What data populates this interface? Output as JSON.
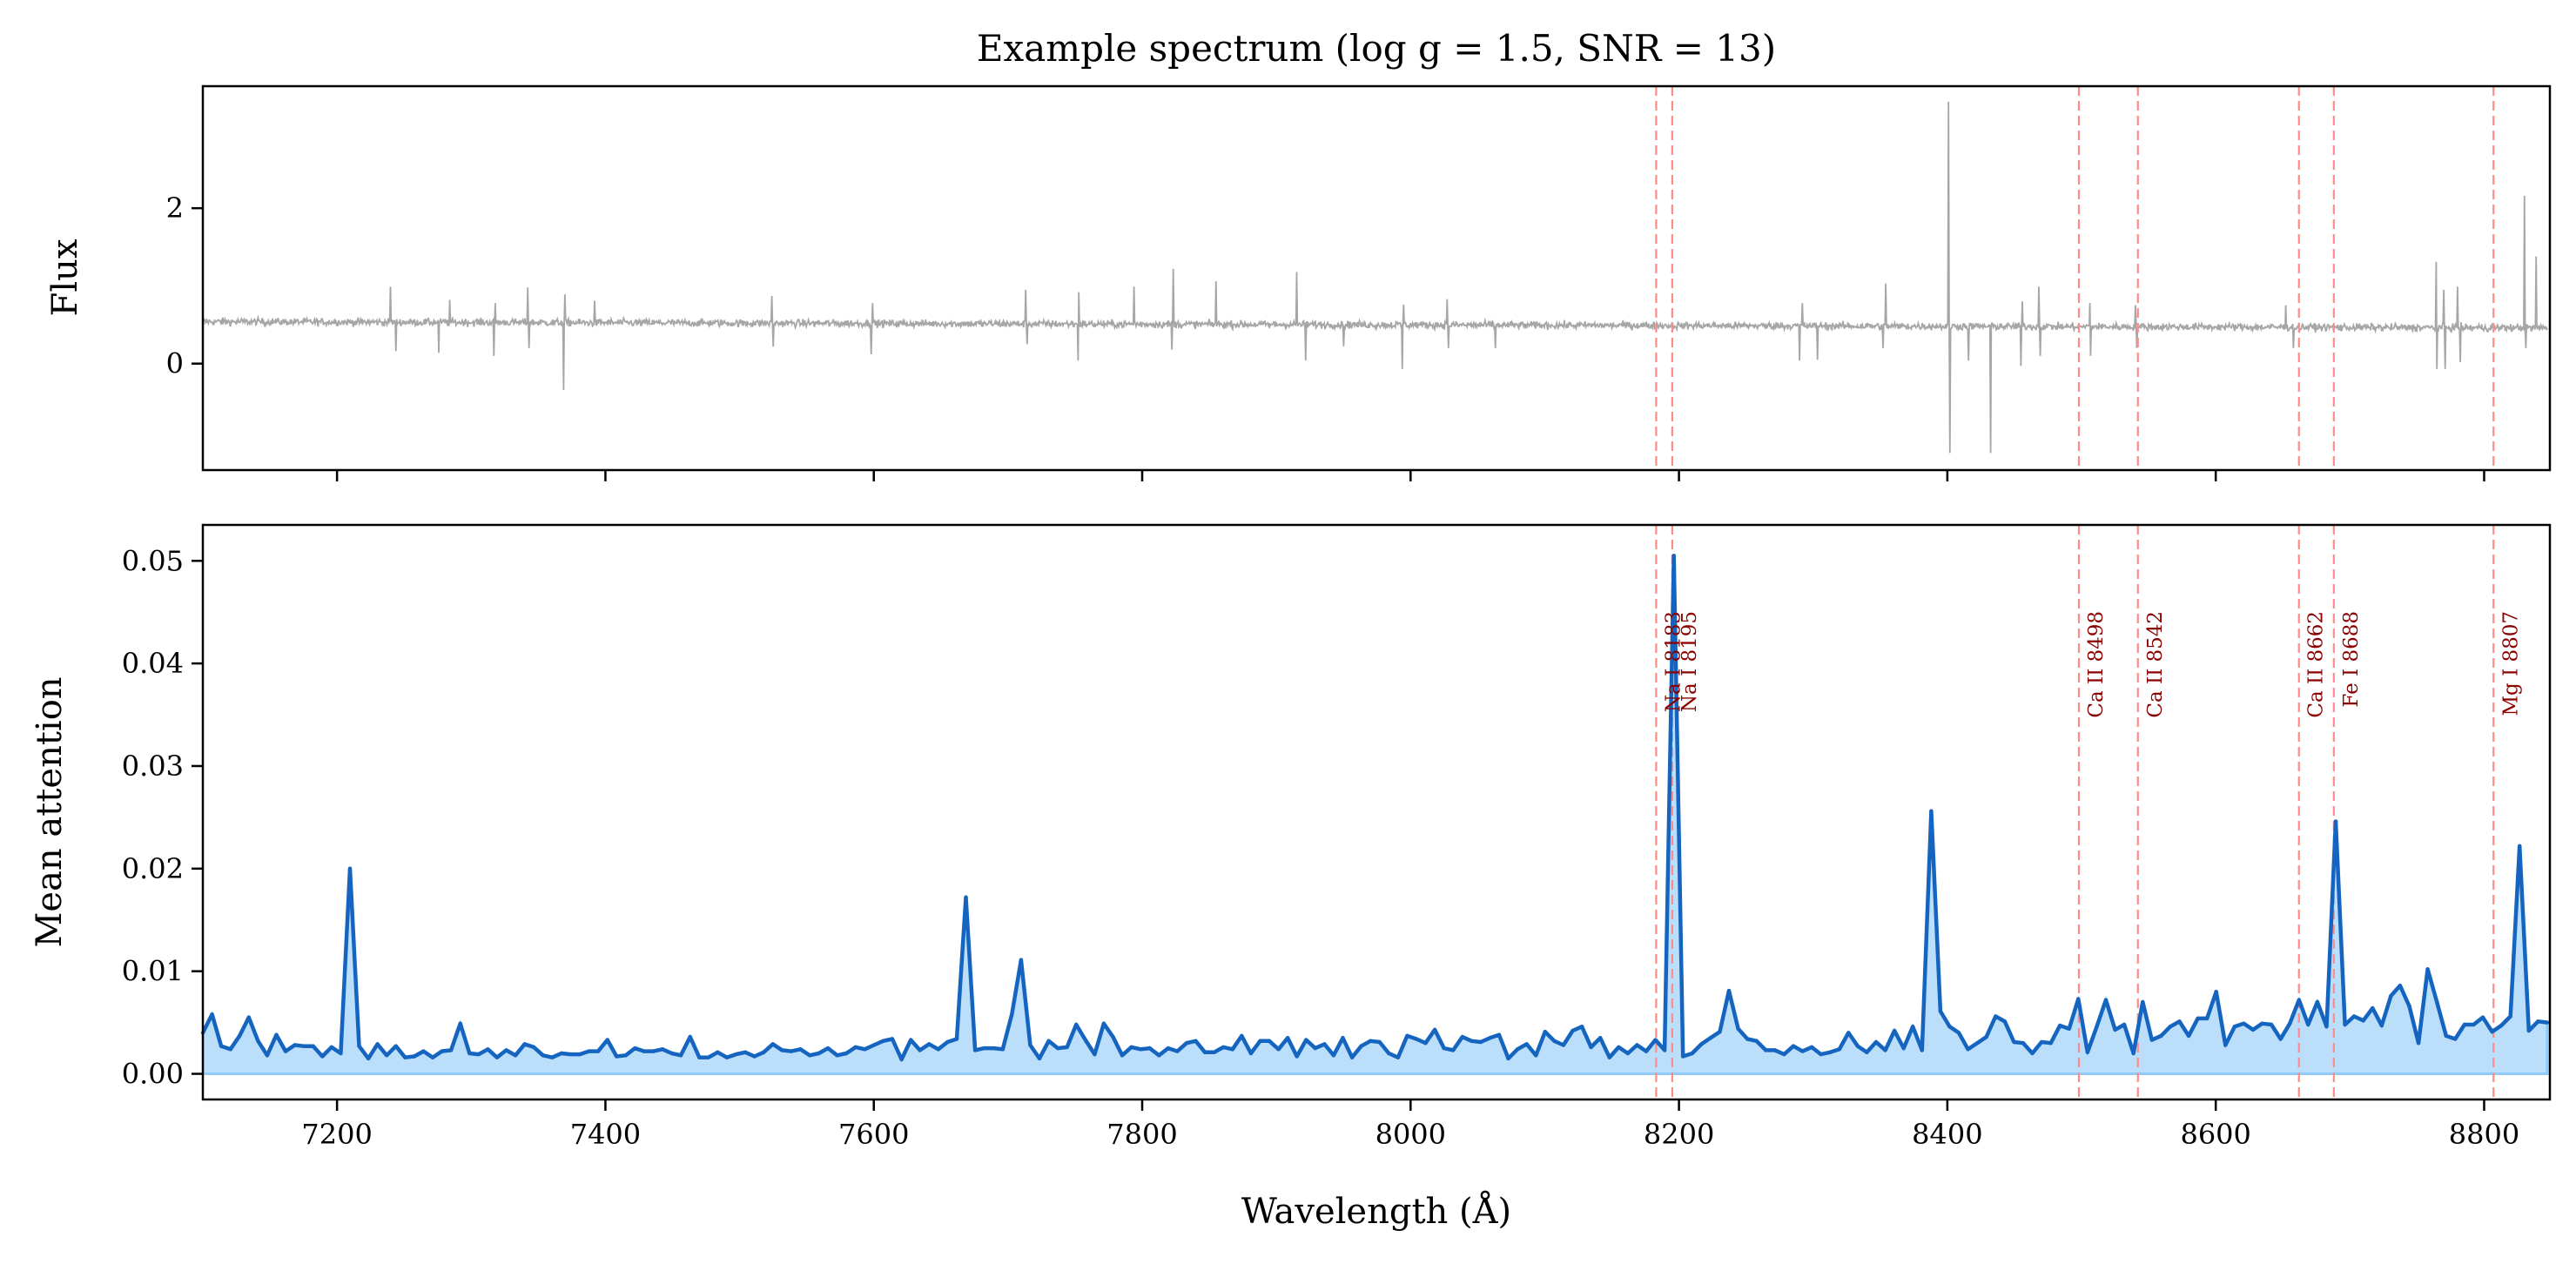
{
  "title": "Example spectrum (log g = 1.5, SNR = 13)",
  "chart_data": [
    {
      "panel": "top",
      "type": "line",
      "ylabel": "Flux",
      "xlim": [
        7100,
        8849
      ],
      "ylim": [
        -1.37,
        3.57
      ],
      "xticks": [
        7200,
        7400,
        7600,
        7800,
        8000,
        8200,
        8400,
        8600,
        8800
      ],
      "xtick_labels_shown": false,
      "yticks": [
        0,
        2
      ],
      "ytick_labels": [
        "0",
        "2"
      ],
      "grid": false,
      "series_color": "#a6a6a6",
      "continuum": {
        "start": 0.54,
        "end": 0.46
      },
      "features": [
        [
          7240,
          0.99
        ],
        [
          7244,
          0.16
        ],
        [
          7276,
          0.14
        ],
        [
          7284,
          0.82
        ],
        [
          7317,
          0.1
        ],
        [
          7318,
          0.78
        ],
        [
          7342,
          0.98
        ],
        [
          7343,
          0.2
        ],
        [
          7369,
          -0.34
        ],
        [
          7370,
          0.89
        ],
        [
          7392,
          0.81
        ],
        [
          7524,
          0.87
        ],
        [
          7525,
          0.22
        ],
        [
          7598,
          0.12
        ],
        [
          7599,
          0.78
        ],
        [
          7713,
          0.95
        ],
        [
          7714,
          0.25
        ],
        [
          7752,
          0.04
        ],
        [
          7753,
          0.92
        ],
        [
          7794,
          0.99
        ],
        [
          7822,
          0.18
        ],
        [
          7823,
          1.22
        ],
        [
          7855,
          1.06
        ],
        [
          7915,
          1.18
        ],
        [
          7922,
          0.04
        ],
        [
          7950,
          0.22
        ],
        [
          7994,
          -0.07
        ],
        [
          7995,
          0.76
        ],
        [
          8027,
          0.83
        ],
        [
          8028,
          0.2
        ],
        [
          8063,
          0.2
        ],
        [
          8290,
          0.04
        ],
        [
          8292,
          0.78
        ],
        [
          8303,
          0.05
        ],
        [
          8352,
          0.2
        ],
        [
          8354,
          1.03
        ],
        [
          8401,
          3.37
        ],
        [
          8402,
          -1.15
        ],
        [
          8416,
          0.04
        ],
        [
          8432,
          -1.15
        ],
        [
          8455,
          -0.03
        ],
        [
          8456,
          0.8
        ],
        [
          8468,
          0.99
        ],
        [
          8469,
          0.1
        ],
        [
          8506,
          0.78
        ],
        [
          8507,
          0.1
        ],
        [
          8540,
          0.75
        ],
        [
          8541,
          0.2
        ],
        [
          8652,
          0.75
        ],
        [
          8658,
          0.2
        ],
        [
          8764,
          1.31
        ],
        [
          8765,
          -0.07
        ],
        [
          8770,
          0.95
        ],
        [
          8771,
          -0.07
        ],
        [
          8780,
          0.99
        ],
        [
          8782,
          0.02
        ],
        [
          8830,
          2.16
        ],
        [
          8831,
          0.2
        ],
        [
          8839,
          1.38
        ]
      ]
    },
    {
      "panel": "bottom",
      "type": "area",
      "xlabel": "Wavelength (Å)",
      "ylabel": "Mean attention",
      "xlim": [
        7100,
        8849
      ],
      "ylim": [
        -0.0025,
        0.0535
      ],
      "xticks": [
        7200,
        7400,
        7600,
        7800,
        8000,
        8200,
        8400,
        8600,
        8800
      ],
      "xtick_labels": [
        "7200",
        "7400",
        "7600",
        "7800",
        "8000",
        "8200",
        "8400",
        "8600",
        "8800"
      ],
      "yticks": [
        0,
        0.01,
        0.02,
        0.03,
        0.04,
        0.05
      ],
      "ytick_labels": [
        "0.00",
        "0.01",
        "0.02",
        "0.03",
        "0.04",
        "0.05"
      ],
      "grid": false,
      "line_color": "#1565c0",
      "fill_color": "#bbdefb",
      "x_start": 7100,
      "x_end": 8847,
      "values": [
        0.004,
        0.0058,
        0.0027,
        0.0024,
        0.0037,
        0.0055,
        0.0032,
        0.0018,
        0.0038,
        0.0022,
        0.0028,
        0.0027,
        0.0027,
        0.0017,
        0.0026,
        0.002,
        0.02,
        0.0027,
        0.0015,
        0.0029,
        0.0018,
        0.0027,
        0.0016,
        0.0017,
        0.0022,
        0.0016,
        0.0022,
        0.0023,
        0.0049,
        0.002,
        0.0019,
        0.0024,
        0.0016,
        0.0023,
        0.0018,
        0.0029,
        0.0026,
        0.0018,
        0.0016,
        0.002,
        0.0019,
        0.0019,
        0.0022,
        0.0022,
        0.0033,
        0.0017,
        0.0018,
        0.0025,
        0.0022,
        0.0022,
        0.0024,
        0.002,
        0.0018,
        0.0036,
        0.0016,
        0.0016,
        0.0021,
        0.0016,
        0.0019,
        0.0021,
        0.0017,
        0.0021,
        0.0029,
        0.0023,
        0.0022,
        0.0024,
        0.0018,
        0.002,
        0.0025,
        0.0018,
        0.002,
        0.0026,
        0.0024,
        0.0028,
        0.0032,
        0.0034,
        0.0014,
        0.0033,
        0.0023,
        0.0029,
        0.0024,
        0.0031,
        0.0034,
        0.0172,
        0.0023,
        0.0025,
        0.0025,
        0.0024,
        0.0058,
        0.0111,
        0.0028,
        0.0015,
        0.0032,
        0.0025,
        0.0026,
        0.0048,
        0.0033,
        0.0019,
        0.0049,
        0.0036,
        0.0018,
        0.0026,
        0.0024,
        0.0025,
        0.0018,
        0.0025,
        0.0022,
        0.003,
        0.0032,
        0.0021,
        0.0021,
        0.0026,
        0.0024,
        0.0037,
        0.002,
        0.0032,
        0.0032,
        0.0024,
        0.0035,
        0.0017,
        0.0033,
        0.0025,
        0.0029,
        0.0018,
        0.0035,
        0.0016,
        0.0027,
        0.0032,
        0.0031,
        0.002,
        0.0016,
        0.0037,
        0.0034,
        0.003,
        0.0043,
        0.0025,
        0.0023,
        0.0036,
        0.0032,
        0.0031,
        0.0035,
        0.0038,
        0.0015,
        0.0024,
        0.0029,
        0.0018,
        0.0041,
        0.0032,
        0.0028,
        0.0042,
        0.0046,
        0.0026,
        0.0035,
        0.0016,
        0.0026,
        0.002,
        0.0028,
        0.0022,
        0.0033,
        0.0023,
        0.0505,
        0.0017,
        0.002,
        0.0029,
        0.0035,
        0.0041,
        0.0081,
        0.0044,
        0.0034,
        0.0032,
        0.0023,
        0.0023,
        0.0019,
        0.0027,
        0.0022,
        0.0026,
        0.0019,
        0.0021,
        0.0024,
        0.004,
        0.0027,
        0.0021,
        0.0031,
        0.0023,
        0.0042,
        0.0025,
        0.0046,
        0.0023,
        0.0256,
        0.0061,
        0.0046,
        0.004,
        0.0024,
        0.003,
        0.0036,
        0.0056,
        0.0051,
        0.0031,
        0.003,
        0.002,
        0.0031,
        0.003,
        0.0047,
        0.0044,
        0.0073,
        0.0021,
        0.0046,
        0.0072,
        0.0043,
        0.0048,
        0.002,
        0.007,
        0.0033,
        0.0037,
        0.0046,
        0.0051,
        0.0037,
        0.0054,
        0.0054,
        0.008,
        0.0028,
        0.0046,
        0.0049,
        0.0043,
        0.0049,
        0.0048,
        0.0034,
        0.0049,
        0.0072,
        0.0048,
        0.007,
        0.0046,
        0.0246,
        0.0048,
        0.0056,
        0.0052,
        0.0064,
        0.0047,
        0.0076,
        0.0086,
        0.0066,
        0.003,
        0.0102,
        0.007,
        0.0037,
        0.0034,
        0.0048,
        0.0048,
        0.0055,
        0.0041,
        0.0047,
        0.0056,
        0.0222,
        0.0042,
        0.0051,
        0.005
      ]
    }
  ],
  "reference_lines": {
    "color": "#ff8a8a",
    "label_color": "#8b0000",
    "style": "dashed",
    "lines": [
      {
        "wavelength": 8183,
        "label": "Na I 8183"
      },
      {
        "wavelength": 8195,
        "label": "Na I 8195"
      },
      {
        "wavelength": 8498,
        "label": "Ca II 8498"
      },
      {
        "wavelength": 8542,
        "label": "Ca II 8542"
      },
      {
        "wavelength": 8662,
        "label": "Ca II 8662"
      },
      {
        "wavelength": 8688,
        "label": "Fe I 8688"
      },
      {
        "wavelength": 8807,
        "label": "Mg I 8807"
      }
    ]
  }
}
